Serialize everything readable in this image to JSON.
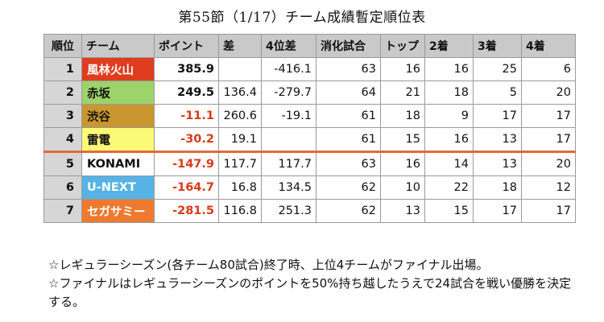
{
  "title": "第55節（1/17）チーム成績暫定順位表",
  "headers": {
    "rank": "順位",
    "team": "チーム",
    "points": "ポイント",
    "diff": "差",
    "diff4": "4位差",
    "played": "消化試合",
    "top": "トップ",
    "second": "2着",
    "third": "3着",
    "fourth": "4着"
  },
  "rows": [
    {
      "rank": "1",
      "team": "風林火山",
      "team_color": "#e03c1f",
      "team_text_color": "#ffffff",
      "points": "385.9",
      "points_negative": false,
      "diff": "",
      "diff4": "-416.1",
      "played": "63",
      "top": "16",
      "second": "16",
      "third": "25",
      "fourth": "6"
    },
    {
      "rank": "2",
      "team": "赤坂",
      "team_color": "#9cd36a",
      "team_text_color": "#111111",
      "points": "249.5",
      "points_negative": false,
      "diff": "136.4",
      "diff4": "-279.7",
      "played": "64",
      "top": "21",
      "second": "18",
      "third": "5",
      "fourth": "20"
    },
    {
      "rank": "3",
      "team": "渋谷",
      "team_color": "#c9962f",
      "team_text_color": "#111111",
      "points": "-11.1",
      "points_negative": true,
      "diff": "260.6",
      "diff4": "-19.1",
      "played": "61",
      "top": "18",
      "second": "9",
      "third": "17",
      "fourth": "17"
    },
    {
      "rank": "4",
      "team": "雷電",
      "team_color": "#fbf978",
      "team_text_color": "#111111",
      "points": "-30.2",
      "points_negative": true,
      "diff": "19.1",
      "diff4": "",
      "played": "61",
      "top": "15",
      "second": "16",
      "third": "13",
      "fourth": "17"
    },
    {
      "rank": "5",
      "team": "KONAMI",
      "team_color": "#ffffff",
      "team_text_color": "#111111",
      "points": "-147.9",
      "points_negative": true,
      "diff": "117.7",
      "diff4": "117.7",
      "played": "63",
      "top": "16",
      "second": "14",
      "third": "13",
      "fourth": "20"
    },
    {
      "rank": "6",
      "team": "U-NEXT",
      "team_color": "#57b3e6",
      "team_text_color": "#ffffff",
      "points": "-164.7",
      "points_negative": true,
      "diff": "16.8",
      "diff4": "134.5",
      "played": "62",
      "top": "10",
      "second": "22",
      "third": "18",
      "fourth": "12"
    },
    {
      "rank": "7",
      "team": "セガサミー",
      "team_color": "#ee7a2f",
      "team_text_color": "#ffffff",
      "points": "-281.5",
      "points_negative": true,
      "diff": "116.8",
      "diff4": "251.3",
      "played": "62",
      "top": "13",
      "second": "15",
      "third": "17",
      "fourth": "17"
    }
  ],
  "notes": [
    "☆レギュラーシーズン(各チーム80試合)終了時、上位4チームがファイナル出場。",
    "☆ファイナルはレギュラーシーズンのポイントを50%持ち越したうえで24試合を戦い優勝を決定する。"
  ],
  "colors": {
    "header_bg": "#c9c9c9",
    "rank_bg": "#d6d6d6",
    "negative_text": "#d93a1a",
    "cutoff_line": "#e06a3a"
  }
}
